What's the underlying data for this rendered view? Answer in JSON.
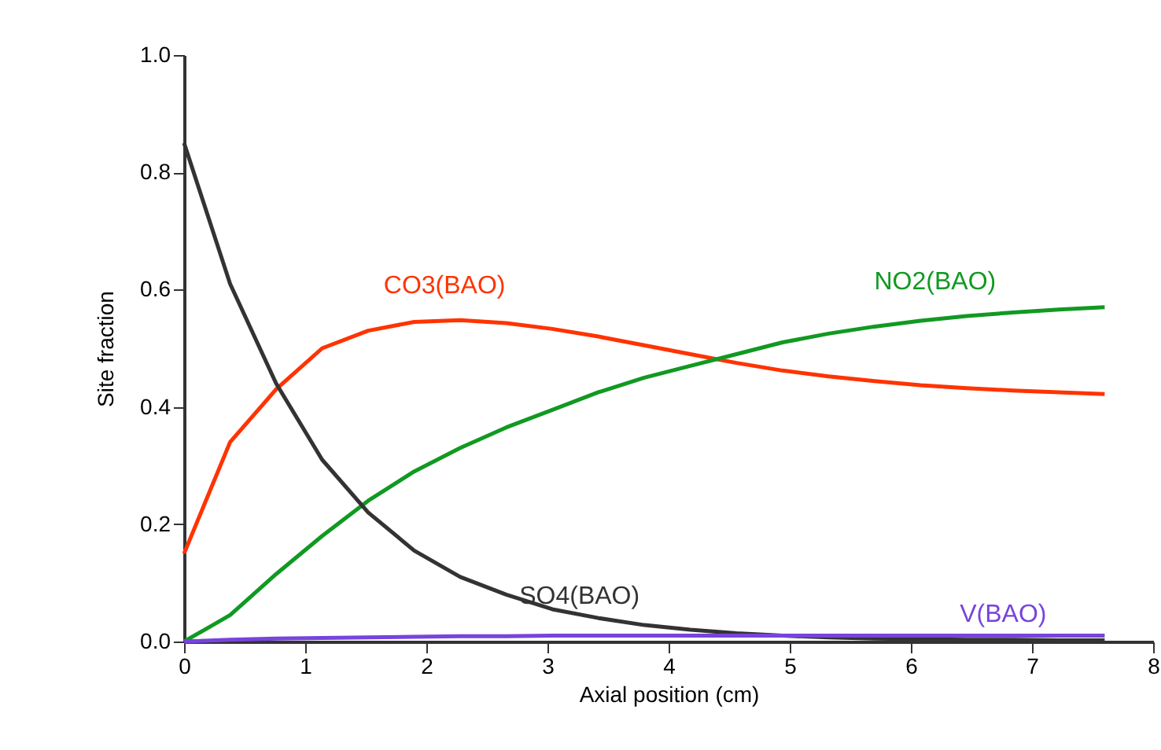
{
  "chart_data": {
    "type": "line",
    "xlabel": "Axial position (cm)",
    "ylabel": "Site fraction",
    "x": [
      0,
      0.38,
      0.76,
      1.14,
      1.52,
      1.9,
      2.28,
      2.66,
      3.04,
      3.42,
      3.8,
      4.18,
      4.56,
      4.94,
      5.32,
      5.7,
      6.08,
      6.46,
      6.84,
      7.22,
      7.6
    ],
    "series": [
      {
        "name": "CO3(BAO)",
        "color": "#ff3300",
        "values": [
          0.15,
          0.34,
          0.43,
          0.5,
          0.53,
          0.545,
          0.548,
          0.543,
          0.533,
          0.52,
          0.505,
          0.49,
          0.475,
          0.462,
          0.452,
          0.444,
          0.437,
          0.432,
          0.428,
          0.425,
          0.422
        ]
      },
      {
        "name": "NO2(BAO)",
        "color": "#119922",
        "values": [
          0,
          0.045,
          0.115,
          0.18,
          0.24,
          0.29,
          0.33,
          0.365,
          0.395,
          0.425,
          0.45,
          0.47,
          0.49,
          0.51,
          0.525,
          0.537,
          0.547,
          0.555,
          0.561,
          0.566,
          0.57
        ]
      },
      {
        "name": "SO4(BAO)",
        "color": "#333333",
        "values": [
          0.85,
          0.61,
          0.44,
          0.31,
          0.22,
          0.155,
          0.11,
          0.08,
          0.055,
          0.04,
          0.028,
          0.02,
          0.014,
          0.01,
          0.007,
          0.005,
          0.004,
          0.003,
          0.003,
          0.002,
          0.002
        ]
      },
      {
        "name": "V(BAO)",
        "color": "#7744dd",
        "values": [
          0,
          0.003,
          0.005,
          0.006,
          0.007,
          0.008,
          0.009,
          0.009,
          0.01,
          0.01,
          0.01,
          0.01,
          0.01,
          0.01,
          0.01,
          0.01,
          0.01,
          0.01,
          0.01,
          0.01,
          0.01
        ]
      }
    ],
    "xlim": [
      0,
      8
    ],
    "xticks": [
      0,
      1,
      2,
      3,
      4,
      5,
      6,
      7,
      8
    ],
    "ylim": [
      0,
      1
    ],
    "yticks": [
      {
        "value": 0,
        "label": "0.0"
      },
      {
        "value": 0.2,
        "label": "0.2"
      },
      {
        "value": 0.4,
        "label": "0.4"
      },
      {
        "value": 0.6,
        "label": "0.6"
      },
      {
        "value": 0.8,
        "label": "0.8"
      },
      {
        "value": 1,
        "label": "1.0"
      }
    ],
    "grid": false,
    "marker": "none",
    "line_style": "solid"
  }
}
